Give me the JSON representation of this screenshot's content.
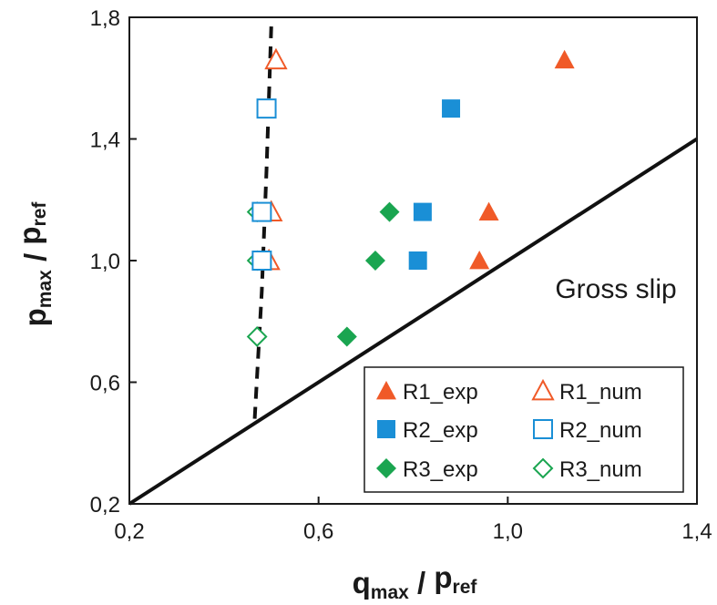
{
  "chart_data": {
    "type": "scatter",
    "xlabel": {
      "main": "q",
      "sub": "max",
      "sep": " / ",
      "main2": "p",
      "sub2": "ref"
    },
    "ylabel": {
      "main": "p",
      "sub": "max",
      "sep": " / ",
      "main2": "p",
      "sub2": "ref"
    },
    "xlim": [
      0.2,
      1.4
    ],
    "ylim": [
      0.2,
      1.8
    ],
    "x_ticks": [
      0.2,
      0.6,
      1.0,
      1.4
    ],
    "x_tick_labels": [
      "0,2",
      "0,6",
      "1,0",
      "1,4"
    ],
    "y_ticks": [
      0.2,
      0.6,
      1.0,
      1.4,
      1.8
    ],
    "y_tick_labels": [
      "0,2",
      "0,6",
      "1,0",
      "1,4",
      "1,8"
    ],
    "grid": false,
    "legend_position": "bottom-right",
    "annotation": "Gross slip",
    "colors": {
      "R1": "#f05a28",
      "R2": "#1a8fd6",
      "R3": "#1aa550"
    },
    "series": [
      {
        "name": "R1_exp",
        "marker": "triangle",
        "filled": true,
        "color": "#f05a28",
        "points": [
          [
            1.12,
            1.66
          ],
          [
            0.96,
            1.16
          ],
          [
            0.94,
            1.0
          ]
        ]
      },
      {
        "name": "R1_num",
        "marker": "triangle",
        "filled": false,
        "color": "#f05a28",
        "points": [
          [
            0.51,
            1.66
          ],
          [
            0.5,
            1.16
          ],
          [
            0.495,
            1.0
          ]
        ]
      },
      {
        "name": "R2_exp",
        "marker": "square",
        "filled": true,
        "color": "#1a8fd6",
        "points": [
          [
            0.88,
            1.5
          ],
          [
            0.82,
            1.16
          ],
          [
            0.81,
            1.0
          ]
        ]
      },
      {
        "name": "R2_num",
        "marker": "square",
        "filled": false,
        "color": "#1a8fd6",
        "points": [
          [
            0.49,
            1.5
          ],
          [
            0.48,
            1.16
          ],
          [
            0.48,
            1.0
          ]
        ]
      },
      {
        "name": "R3_exp",
        "marker": "diamond",
        "filled": true,
        "color": "#1aa550",
        "points": [
          [
            0.75,
            1.16
          ],
          [
            0.72,
            1.0
          ],
          [
            0.66,
            0.75
          ]
        ]
      },
      {
        "name": "R3_num",
        "marker": "diamond",
        "filled": false,
        "color": "#1aa550",
        "points": [
          [
            0.47,
            1.16
          ],
          [
            0.47,
            1.0
          ],
          [
            0.47,
            0.75
          ]
        ]
      }
    ],
    "lines": [
      {
        "kind": "solid",
        "points": [
          [
            0.2,
            0.2
          ],
          [
            1.4,
            1.4
          ]
        ]
      },
      {
        "kind": "dashed",
        "points": [
          [
            0.465,
            0.48
          ],
          [
            0.48,
            0.9
          ],
          [
            0.49,
            1.3
          ],
          [
            0.5,
            1.77
          ]
        ]
      }
    ]
  }
}
